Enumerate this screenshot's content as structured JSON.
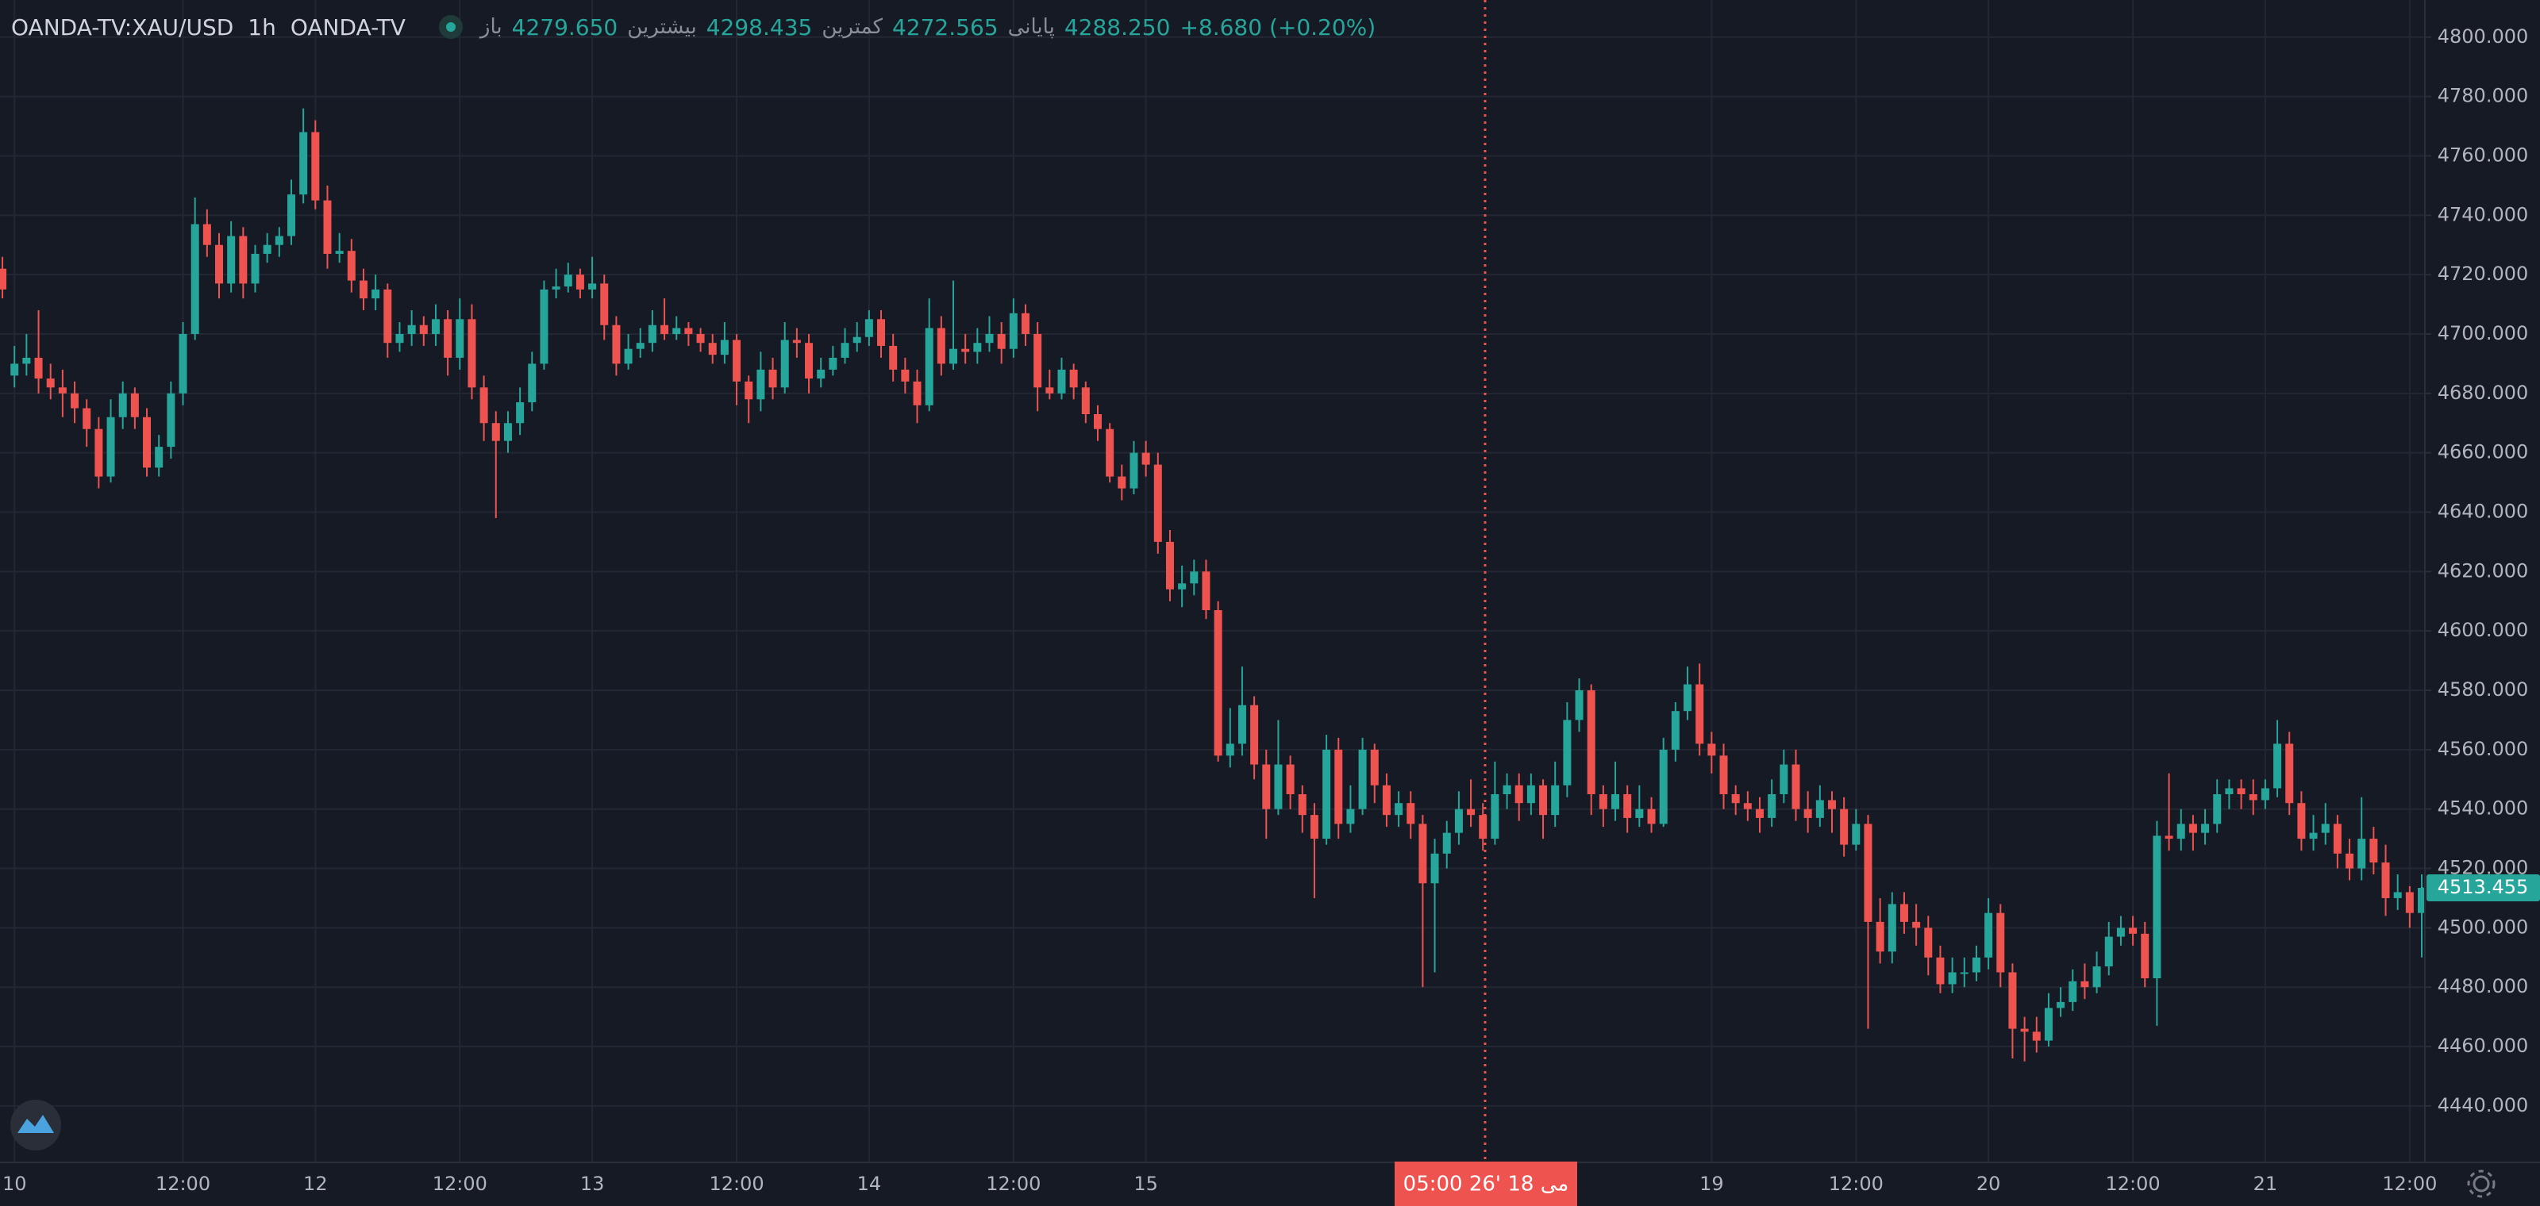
{
  "chart_data": {
    "type": "candlestick",
    "symbol": "OANDA-TV:XAU/USD",
    "interval": "1h",
    "source": "OANDA-TV",
    "ohlc_labels": [
      "باز",
      "بیشترین",
      "کمترین",
      "پایانی"
    ],
    "ohlc_values": [
      {
        "value": 4279.65,
        "label": "4279.650"
      },
      {
        "value": 4298.435,
        "label": "4298.435"
      },
      {
        "value": 4272.565,
        "label": "4272.565"
      },
      {
        "value": 4288.25,
        "label": "4288.250"
      }
    ],
    "change": {
      "value": 8.68,
      "label": "+8.680 (+0.20%)"
    },
    "crosshair_label": "05:00 26' می 18",
    "up_color": "#26a69a",
    "down_color": "#ef5350",
    "grid": true,
    "ylim": [
      4421,
      4812.5
    ],
    "yticks": [
      {
        "value": 4440,
        "label": "4440.000"
      },
      {
        "value": 4460,
        "label": "4460.000"
      },
      {
        "value": 4480,
        "label": "4480.000"
      },
      {
        "value": 4500,
        "label": "4500.000"
      },
      {
        "value": 4520,
        "label": "4520.000"
      },
      {
        "value": 4540,
        "label": "4540.000"
      },
      {
        "value": 4560,
        "label": "4560.000"
      },
      {
        "value": 4580,
        "label": "4580.000"
      },
      {
        "value": 4600,
        "label": "4600.000"
      },
      {
        "value": 4620,
        "label": "4620.000"
      },
      {
        "value": 4640,
        "label": "4640.000"
      },
      {
        "value": 4660,
        "label": "4660.000"
      },
      {
        "value": 4680,
        "label": "4680.000"
      },
      {
        "value": 4700,
        "label": "4700.000"
      },
      {
        "value": 4720,
        "label": "4720.000"
      },
      {
        "value": 4740,
        "label": "4740.000"
      },
      {
        "value": 4760,
        "label": "4760.000"
      },
      {
        "value": 4780,
        "label": "4780.000"
      },
      {
        "value": 4800,
        "label": "4800.000"
      }
    ],
    "categories": [
      null,
      "10",
      null,
      null,
      null,
      null,
      null,
      null,
      null,
      null,
      null,
      null,
      null,
      null,
      null,
      "12:00",
      null,
      null,
      null,
      null,
      null,
      null,
      null,
      null,
      null,
      null,
      "12",
      null,
      null,
      null,
      null,
      null,
      null,
      null,
      null,
      null,
      null,
      null,
      "12:00",
      null,
      null,
      null,
      null,
      null,
      null,
      null,
      null,
      null,
      null,
      "13",
      null,
      null,
      null,
      null,
      null,
      null,
      null,
      null,
      null,
      null,
      null,
      "12:00",
      null,
      null,
      null,
      null,
      null,
      null,
      null,
      null,
      null,
      null,
      "14",
      null,
      null,
      null,
      null,
      null,
      null,
      null,
      null,
      null,
      null,
      null,
      "12:00",
      null,
      null,
      null,
      null,
      null,
      null,
      null,
      null,
      null,
      null,
      "15",
      null,
      null,
      null,
      null,
      null,
      null,
      null,
      null,
      null,
      null,
      null,
      null,
      null,
      null,
      null,
      null,
      null,
      null,
      null,
      null,
      null,
      null,
      null,
      null,
      null,
      null,
      null,
      null,
      null,
      null,
      null,
      null,
      null,
      null,
      null,
      null,
      null,
      null,
      null,
      null,
      null,
      null,
      null,
      null,
      null,
      null,
      "19",
      null,
      null,
      null,
      null,
      null,
      null,
      null,
      null,
      null,
      null,
      null,
      "12:00",
      null,
      null,
      null,
      null,
      null,
      null,
      null,
      null,
      null,
      null,
      "20",
      null,
      null,
      null,
      null,
      null,
      null,
      null,
      null,
      null,
      null,
      null,
      "12:00",
      null,
      null,
      null,
      null,
      null,
      null,
      null,
      null,
      null,
      null,
      "21",
      null,
      null,
      null,
      null,
      null,
      null,
      null,
      null,
      null,
      null,
      null,
      "12:00",
      null,
      null
    ],
    "candles": [
      [
        4722,
        4726,
        4712,
        4715
      ],
      [
        4686,
        4696,
        4682,
        4690
      ],
      [
        4690,
        4700,
        4686,
        4692
      ],
      [
        4692,
        4708,
        4680,
        4685
      ],
      [
        4685,
        4690,
        4678,
        4682
      ],
      [
        4682,
        4688,
        4672,
        4680
      ],
      [
        4680,
        4684,
        4670,
        4675
      ],
      [
        4675,
        4678,
        4662,
        4668
      ],
      [
        4668,
        4672,
        4648,
        4652
      ],
      [
        4652,
        4678,
        4650,
        4672
      ],
      [
        4672,
        4684,
        4668,
        4680
      ],
      [
        4680,
        4682,
        4668,
        4672
      ],
      [
        4672,
        4675,
        4652,
        4655
      ],
      [
        4655,
        4666,
        4652,
        4662
      ],
      [
        4662,
        4684,
        4658,
        4680
      ],
      [
        4680,
        4704,
        4676,
        4700
      ],
      [
        4700,
        4746,
        4698,
        4737
      ],
      [
        4737,
        4742,
        4726,
        4730
      ],
      [
        4730,
        4734,
        4712,
        4717
      ],
      [
        4717,
        4738,
        4714,
        4733
      ],
      [
        4733,
        4736,
        4712,
        4717
      ],
      [
        4717,
        4730,
        4714,
        4727
      ],
      [
        4727,
        4734,
        4724,
        4730
      ],
      [
        4730,
        4736,
        4726,
        4733
      ],
      [
        4733,
        4752,
        4730,
        4747
      ],
      [
        4747,
        4776,
        4744,
        4768
      ],
      [
        4768,
        4772,
        4742,
        4745
      ],
      [
        4745,
        4750,
        4722,
        4727
      ],
      [
        4727,
        4734,
        4724,
        4728
      ],
      [
        4728,
        4732,
        4714,
        4718
      ],
      [
        4718,
        4722,
        4708,
        4712
      ],
      [
        4712,
        4720,
        4708,
        4715
      ],
      [
        4715,
        4717,
        4692,
        4697
      ],
      [
        4697,
        4704,
        4694,
        4700
      ],
      [
        4700,
        4708,
        4696,
        4703
      ],
      [
        4703,
        4706,
        4696,
        4700
      ],
      [
        4700,
        4710,
        4696,
        4705
      ],
      [
        4705,
        4708,
        4686,
        4692
      ],
      [
        4692,
        4712,
        4688,
        4705
      ],
      [
        4705,
        4710,
        4678,
        4682
      ],
      [
        4682,
        4686,
        4664,
        4670
      ],
      [
        4670,
        4674,
        4638,
        4664
      ],
      [
        4664,
        4674,
        4660,
        4670
      ],
      [
        4670,
        4682,
        4666,
        4677
      ],
      [
        4677,
        4694,
        4674,
        4690
      ],
      [
        4690,
        4718,
        4688,
        4715
      ],
      [
        4715,
        4722,
        4712,
        4716
      ],
      [
        4716,
        4724,
        4714,
        4720
      ],
      [
        4720,
        4722,
        4712,
        4715
      ],
      [
        4715,
        4726,
        4712,
        4717
      ],
      [
        4717,
        4720,
        4698,
        4703
      ],
      [
        4703,
        4706,
        4686,
        4690
      ],
      [
        4690,
        4700,
        4688,
        4695
      ],
      [
        4695,
        4702,
        4692,
        4697
      ],
      [
        4697,
        4708,
        4694,
        4703
      ],
      [
        4703,
        4712,
        4698,
        4700
      ],
      [
        4700,
        4706,
        4698,
        4702
      ],
      [
        4702,
        4704,
        4696,
        4700
      ],
      [
        4700,
        4702,
        4694,
        4697
      ],
      [
        4697,
        4700,
        4690,
        4693
      ],
      [
        4693,
        4704,
        4690,
        4698
      ],
      [
        4698,
        4700,
        4676,
        4684
      ],
      [
        4684,
        4686,
        4670,
        4678
      ],
      [
        4678,
        4694,
        4674,
        4688
      ],
      [
        4688,
        4692,
        4678,
        4682
      ],
      [
        4682,
        4704,
        4680,
        4698
      ],
      [
        4698,
        4702,
        4692,
        4697
      ],
      [
        4697,
        4700,
        4680,
        4685
      ],
      [
        4685,
        4692,
        4682,
        4688
      ],
      [
        4688,
        4696,
        4686,
        4692
      ],
      [
        4692,
        4702,
        4690,
        4697
      ],
      [
        4697,
        4704,
        4694,
        4699
      ],
      [
        4699,
        4708,
        4696,
        4705
      ],
      [
        4705,
        4708,
        4692,
        4696
      ],
      [
        4696,
        4700,
        4684,
        4688
      ],
      [
        4688,
        4692,
        4680,
        4684
      ],
      [
        4684,
        4688,
        4670,
        4676
      ],
      [
        4676,
        4712,
        4674,
        4702
      ],
      [
        4702,
        4706,
        4686,
        4690
      ],
      [
        4690,
        4718,
        4688,
        4695
      ],
      [
        4695,
        4700,
        4690,
        4694
      ],
      [
        4694,
        4702,
        4690,
        4697
      ],
      [
        4697,
        4706,
        4694,
        4700
      ],
      [
        4700,
        4704,
        4690,
        4695
      ],
      [
        4695,
        4712,
        4692,
        4707
      ],
      [
        4707,
        4710,
        4696,
        4700
      ],
      [
        4700,
        4704,
        4674,
        4682
      ],
      [
        4682,
        4688,
        4678,
        4680
      ],
      [
        4680,
        4692,
        4678,
        4688
      ],
      [
        4688,
        4690,
        4678,
        4682
      ],
      [
        4682,
        4684,
        4670,
        4673
      ],
      [
        4673,
        4676,
        4664,
        4668
      ],
      [
        4668,
        4670,
        4650,
        4652
      ],
      [
        4652,
        4656,
        4644,
        4648
      ],
      [
        4648,
        4664,
        4646,
        4660
      ],
      [
        4660,
        4664,
        4652,
        4656
      ],
      [
        4656,
        4660,
        4626,
        4630
      ],
      [
        4630,
        4634,
        4610,
        4614
      ],
      [
        4614,
        4622,
        4608,
        4616
      ],
      [
        4616,
        4624,
        4612,
        4620
      ],
      [
        4620,
        4624,
        4604,
        4607
      ],
      [
        4607,
        4610,
        4556,
        4558
      ],
      [
        4558,
        4574,
        4554,
        4562
      ],
      [
        4562,
        4588,
        4558,
        4575
      ],
      [
        4575,
        4578,
        4550,
        4555
      ],
      [
        4555,
        4560,
        4530,
        4540
      ],
      [
        4540,
        4570,
        4538,
        4555
      ],
      [
        4555,
        4558,
        4540,
        4545
      ],
      [
        4545,
        4548,
        4532,
        4538
      ],
      [
        4538,
        4542,
        4510,
        4530
      ],
      [
        4530,
        4565,
        4528,
        4560
      ],
      [
        4560,
        4564,
        4530,
        4535
      ],
      [
        4535,
        4548,
        4532,
        4540
      ],
      [
        4540,
        4564,
        4538,
        4560
      ],
      [
        4560,
        4562,
        4542,
        4548
      ],
      [
        4548,
        4552,
        4534,
        4538
      ],
      [
        4538,
        4546,
        4534,
        4542
      ],
      [
        4542,
        4546,
        4530,
        4535
      ],
      [
        4535,
        4538,
        4480,
        4515
      ],
      [
        4515,
        4530,
        4485,
        4525
      ],
      [
        4525,
        4536,
        4520,
        4532
      ],
      [
        4532,
        4546,
        4528,
        4540
      ],
      [
        4540,
        4550,
        4534,
        4538
      ],
      [
        4538,
        4542,
        4526,
        4530
      ],
      [
        4530,
        4556,
        4528,
        4545
      ],
      [
        4545,
        4552,
        4540,
        4548
      ],
      [
        4548,
        4552,
        4536,
        4542
      ],
      [
        4542,
        4552,
        4538,
        4548
      ],
      [
        4548,
        4550,
        4530,
        4538
      ],
      [
        4538,
        4556,
        4534,
        4548
      ],
      [
        4548,
        4576,
        4544,
        4570
      ],
      [
        4570,
        4584,
        4566,
        4580
      ],
      [
        4580,
        4582,
        4538,
        4545
      ],
      [
        4545,
        4548,
        4534,
        4540
      ],
      [
        4540,
        4556,
        4536,
        4545
      ],
      [
        4545,
        4548,
        4532,
        4537
      ],
      [
        4537,
        4548,
        4534,
        4540
      ],
      [
        4540,
        4544,
        4532,
        4535
      ],
      [
        4535,
        4564,
        4534,
        4560
      ],
      [
        4560,
        4576,
        4556,
        4573
      ],
      [
        4573,
        4588,
        4570,
        4582
      ],
      [
        4582,
        4589,
        4558,
        4562
      ],
      [
        4562,
        4566,
        4552,
        4558
      ],
      [
        4558,
        4562,
        4540,
        4545
      ],
      [
        4545,
        4548,
        4538,
        4542
      ],
      [
        4542,
        4546,
        4536,
        4540
      ],
      [
        4540,
        4544,
        4532,
        4537
      ],
      [
        4537,
        4550,
        4534,
        4545
      ],
      [
        4545,
        4560,
        4542,
        4555
      ],
      [
        4555,
        4560,
        4536,
        4540
      ],
      [
        4540,
        4546,
        4532,
        4537
      ],
      [
        4537,
        4548,
        4534,
        4543
      ],
      [
        4543,
        4546,
        4532,
        4540
      ],
      [
        4540,
        4544,
        4524,
        4528
      ],
      [
        4528,
        4540,
        4526,
        4535
      ],
      [
        4535,
        4538,
        4466,
        4502
      ],
      [
        4502,
        4510,
        4488,
        4492
      ],
      [
        4492,
        4512,
        4488,
        4508
      ],
      [
        4508,
        4512,
        4498,
        4502
      ],
      [
        4502,
        4508,
        4494,
        4500
      ],
      [
        4500,
        4504,
        4484,
        4490
      ],
      [
        4490,
        4494,
        4478,
        4481
      ],
      [
        4481,
        4490,
        4478,
        4485
      ],
      [
        4485,
        4490,
        4480,
        4485
      ],
      [
        4485,
        4494,
        4482,
        4490
      ],
      [
        4490,
        4510,
        4486,
        4505
      ],
      [
        4505,
        4508,
        4480,
        4485
      ],
      [
        4485,
        4488,
        4456,
        4466
      ],
      [
        4466,
        4470,
        4455,
        4465
      ],
      [
        4465,
        4470,
        4458,
        4462
      ],
      [
        4462,
        4478,
        4460,
        4473
      ],
      [
        4473,
        4480,
        4470,
        4475
      ],
      [
        4475,
        4486,
        4472,
        4482
      ],
      [
        4482,
        4488,
        4476,
        4480
      ],
      [
        4480,
        4492,
        4478,
        4487
      ],
      [
        4487,
        4502,
        4484,
        4497
      ],
      [
        4497,
        4504,
        4494,
        4500
      ],
      [
        4500,
        4504,
        4494,
        4498
      ],
      [
        4498,
        4502,
        4480,
        4483
      ],
      [
        4483,
        4536,
        4467,
        4531
      ],
      [
        4531,
        4552,
        4526,
        4530
      ],
      [
        4530,
        4540,
        4526,
        4535
      ],
      [
        4535,
        4538,
        4526,
        4532
      ],
      [
        4532,
        4540,
        4528,
        4535
      ],
      [
        4535,
        4550,
        4532,
        4545
      ],
      [
        4545,
        4550,
        4540,
        4547
      ],
      [
        4547,
        4550,
        4540,
        4545
      ],
      [
        4545,
        4550,
        4538,
        4543
      ],
      [
        4543,
        4550,
        4540,
        4547
      ],
      [
        4547,
        4570,
        4544,
        4562
      ],
      [
        4562,
        4566,
        4538,
        4542
      ],
      [
        4542,
        4546,
        4526,
        4530
      ],
      [
        4530,
        4538,
        4526,
        4532
      ],
      [
        4532,
        4542,
        4528,
        4535
      ],
      [
        4535,
        4538,
        4520,
        4525
      ],
      [
        4525,
        4530,
        4516,
        4520
      ],
      [
        4520,
        4544,
        4516,
        4530
      ],
      [
        4530,
        4534,
        4518,
        4522
      ],
      [
        4522,
        4528,
        4504,
        4510
      ],
      [
        4510,
        4518,
        4506,
        4512
      ],
      [
        4512,
        4514,
        4500,
        4505
      ],
      [
        4505,
        4518,
        4490,
        4513.455
      ]
    ]
  }
}
